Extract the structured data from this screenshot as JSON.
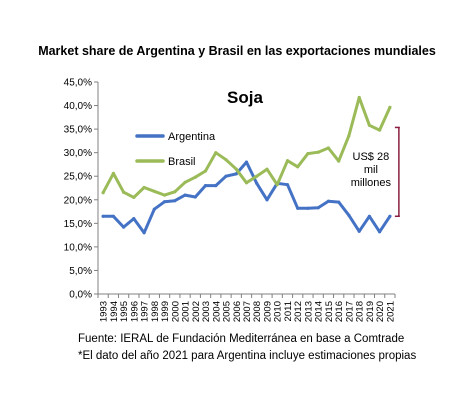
{
  "chart_data": {
    "type": "line",
    "title": "Market share de Argentina y Brasil en las exportaciones mundiales",
    "inner_title": "Soja",
    "x": [
      "1993",
      "1994",
      "1995",
      "1996",
      "1997",
      "1998",
      "1999",
      "2000",
      "2001",
      "2002",
      "2003",
      "2004",
      "2005",
      "2006",
      "2007",
      "2008",
      "2009",
      "2010",
      "2011",
      "2012",
      "2013",
      "2014",
      "2015",
      "2016",
      "2017",
      "2018",
      "2019",
      "2020",
      "2021"
    ],
    "series": [
      {
        "name": "Argentina",
        "color": "#4472C4",
        "values": [
          16.5,
          16.5,
          14.2,
          16.0,
          13.0,
          18.0,
          19.6,
          19.8,
          21.0,
          20.6,
          23.0,
          23.0,
          25.0,
          25.5,
          28.0,
          23.5,
          20.0,
          23.5,
          23.2,
          18.2,
          18.2,
          18.3,
          19.7,
          19.5,
          16.7,
          13.3,
          16.5,
          13.2,
          16.5
        ]
      },
      {
        "name": "Brasil",
        "color": "#9BBB59",
        "values": [
          21.5,
          25.6,
          21.6,
          20.5,
          22.6,
          21.8,
          21.0,
          21.7,
          23.7,
          24.8,
          26.1,
          30.0,
          28.5,
          26.5,
          23.6,
          25.0,
          26.5,
          23.2,
          28.3,
          27.0,
          29.8,
          30.1,
          31.0,
          28.2,
          33.6,
          41.7,
          35.8,
          34.8,
          39.6
        ]
      }
    ],
    "yticks": [
      "0,0%",
      "5,0%",
      "10,0%",
      "15,0%",
      "20,0%",
      "25,0%",
      "30,0%",
      "35,0%",
      "40,0%",
      "45,0%"
    ],
    "ylim": [
      0,
      45
    ],
    "grid": false,
    "legend": "center-left",
    "annotation": {
      "lines": [
        "US$ 28",
        "mil",
        "millones"
      ],
      "range_year": "2021",
      "range": [
        16.5,
        39.6
      ],
      "color": "#8B1E3F"
    }
  },
  "footnotes": {
    "source": "Fuente: IERAL de Fundación Mediterránea en base a Comtrade",
    "note": "*El dato del año 2021 para Argentina incluye estimaciones propias"
  }
}
